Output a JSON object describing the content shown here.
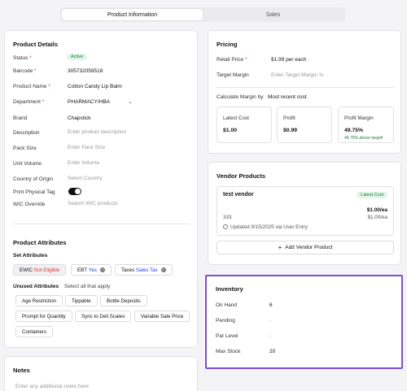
{
  "tabs": [
    "Product Information",
    "Sales"
  ],
  "details": {
    "title": "Product Details",
    "status_label": "Status",
    "status_value": "Active",
    "barcode_label": "Barcode",
    "barcode_value": "305732059518",
    "name_label": "Product Name",
    "name_value": "Cotton Candy Lip Balm",
    "department_label": "Department",
    "department_value": "PHARMACY/HBA",
    "brand_label": "Brand",
    "brand_value": "Chapstick",
    "description_label": "Description",
    "description_placeholder": "Enter product description",
    "pack_label": "Pack Size",
    "pack_placeholder": "Enter Pack Size",
    "unit_label": "Unit Volume",
    "unit_placeholder": "Enter Volume",
    "country_label": "Country of Origin",
    "country_placeholder": "Select Country",
    "print_label": "Print Physical Tag",
    "print_on": true,
    "wic_label": "WIC Override",
    "wic_placeholder": "Search WIC products"
  },
  "attributes": {
    "title": "Product Attributes",
    "set_label": "Set Attributes",
    "set": [
      {
        "name": "EWIC",
        "value": "Not Eligible",
        "color": "#d33"
      },
      {
        "name": "EBT",
        "value": "Yes",
        "color": "#2b3fd6"
      },
      {
        "name": "Taxes",
        "value": "Sales Tax",
        "color": "#2b3fd6"
      }
    ],
    "unused_label": "Unused Attributes",
    "unused_hint": "Select all that apply",
    "unused": [
      "Age Restriction",
      "Tippable",
      "Bottle Deposits",
      "Prompt for Quantity",
      "Sync to Deli Scales",
      "Variable Sale Price",
      "Containers"
    ]
  },
  "notes": {
    "title": "Notes",
    "placeholder": "Enter any additional notes here"
  },
  "pricing": {
    "title": "Pricing",
    "retail_label": "Retail Price",
    "retail_value": "$1.99 per each",
    "margin_label": "Target Margin",
    "margin_placeholder": "Enter Target Margin %",
    "calc_label": "Calculate Margin by",
    "calc_value": "Most recent cost",
    "latest_cost_label": "Latest Cost",
    "latest_cost_value": "$1.00",
    "profit_label": "Profit",
    "profit_value": "$0.99",
    "profit_margin_label": "Profit Margin",
    "profit_margin_value": "49.75%",
    "profit_margin_note": "49.75% above target!"
  },
  "vendor": {
    "title": "Vendor Products",
    "name": "test vendor",
    "badge": "Latest Cost",
    "price1": "$1.00/ea",
    "price2": "$1.00/ea",
    "code": "333",
    "updated": "Updated 9/15/2025 via User Entry",
    "add_label": "Add Vendor Product"
  },
  "inventory": {
    "title": "Inventory",
    "rows": [
      {
        "label": "On Hand",
        "value": "6"
      },
      {
        "label": "Pending",
        "value": "-"
      },
      {
        "label": "Par Level",
        "value": "-"
      },
      {
        "label": "Max Stock",
        "value": "20"
      }
    ]
  },
  "colors": {
    "highlight": "#7c4ddd",
    "active_badge_bg": "#dff5e6",
    "active_badge_fg": "#1a7a3c"
  }
}
